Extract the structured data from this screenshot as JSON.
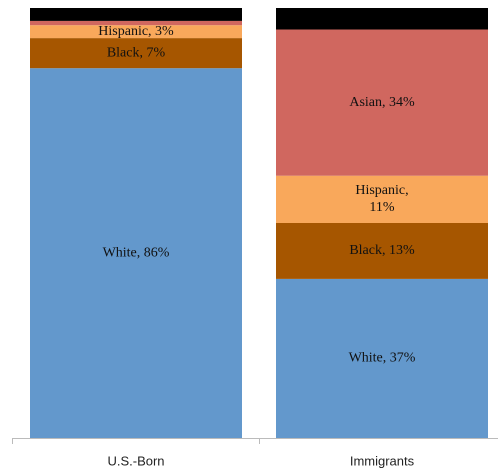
{
  "chart_data": {
    "type": "stacked_bar",
    "categories": [
      "U.S.-Born",
      "Immigrants"
    ],
    "ylim": [
      0,
      100
    ],
    "series": [
      {
        "name": "White",
        "color": "#6398cc",
        "values": [
          86,
          37
        ],
        "value_labels": [
          "White, 86%",
          "White, 37%"
        ]
      },
      {
        "name": "Black",
        "color": "#a65600",
        "values": [
          7,
          13
        ],
        "value_labels": [
          "Black, 7%",
          "Black, 13%"
        ]
      },
      {
        "name": "Hispanic",
        "color": "#f9a85b",
        "values": [
          3,
          11
        ],
        "value_labels": [
          "Hispanic, 3%",
          "Hispanic,\n11%"
        ]
      },
      {
        "name": "Asian",
        "color": "#d0675f",
        "values": [
          1,
          34
        ],
        "value_labels": [
          null,
          "Asian, 34%"
        ]
      },
      {
        "color": "#000000",
        "values": [
          3,
          5
        ]
      }
    ]
  }
}
